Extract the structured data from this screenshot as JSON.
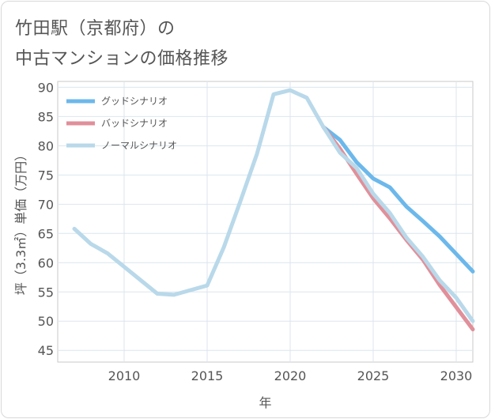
{
  "header": {
    "title_line1": "竹田駅（京都府）の",
    "title_line2": "中古マンションの価格推移"
  },
  "chart_data": {
    "type": "line",
    "xlabel": "年",
    "ylabel": "坪（3.3㎡）単価（万円）",
    "xlim": [
      2006,
      2031
    ],
    "ylim": [
      43,
      91
    ],
    "xticks": [
      2010,
      2015,
      2020,
      2025,
      2030
    ],
    "yticks": [
      45,
      50,
      55,
      60,
      65,
      70,
      75,
      80,
      85,
      90
    ],
    "grid": true,
    "legend_position": "top-left",
    "series": [
      {
        "name": "グッドシナリオ",
        "color": "#6cb8eb",
        "x": [
          2022,
          2023,
          2024,
          2025,
          2026,
          2027,
          2028,
          2029,
          2030,
          2031
        ],
        "y": [
          83.2,
          81.0,
          77.2,
          74.4,
          72.9,
          69.6,
          67.1,
          64.5,
          61.5,
          58.5
        ]
      },
      {
        "name": "バッドシナリオ",
        "color": "#e0909a",
        "x": [
          2022,
          2023,
          2024,
          2025,
          2026,
          2027,
          2028,
          2029,
          2030,
          2031
        ],
        "y": [
          83.2,
          79.5,
          75.2,
          71.0,
          67.6,
          63.9,
          60.5,
          56.2,
          52.4,
          48.6
        ]
      },
      {
        "name": "ノーマルシナリオ",
        "color": "#b9d9ea",
        "x": [
          2007,
          2008,
          2009,
          2010,
          2011,
          2012,
          2013,
          2014,
          2015,
          2016,
          2017,
          2018,
          2019,
          2020,
          2021,
          2022,
          2023,
          2024,
          2025,
          2026,
          2027,
          2028,
          2029,
          2030,
          2031
        ],
        "y": [
          65.8,
          63.2,
          61.6,
          59.3,
          57.0,
          54.7,
          54.5,
          55.3,
          56.1,
          62.6,
          70.5,
          78.6,
          88.8,
          89.5,
          88.2,
          83.2,
          78.8,
          76.2,
          71.8,
          68.5,
          64.3,
          61.0,
          57.0,
          54.0,
          50.0
        ]
      }
    ]
  }
}
